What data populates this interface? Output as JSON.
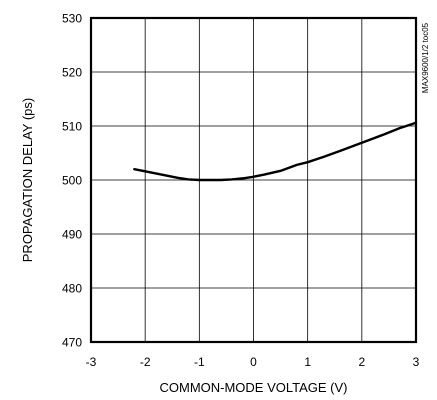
{
  "chart_data": {
    "type": "line",
    "title": "",
    "xlabel": "COMMON-MODE VOLTAGE (V)",
    "ylabel": "PROPAGATION DELAY (ps)",
    "side_label": "MAX9600/1/2 toc05",
    "xlim": [
      -3,
      3
    ],
    "ylim": [
      470,
      530
    ],
    "grid": true,
    "x_ticks": [
      -3,
      -2,
      -1,
      0,
      1,
      2,
      3
    ],
    "y_ticks": [
      470,
      480,
      490,
      500,
      510,
      520,
      530
    ],
    "x_tick_labels": [
      "-3",
      "-2",
      "-1",
      "0",
      "1",
      "2",
      "3"
    ],
    "y_tick_labels": [
      "470",
      "480",
      "490",
      "500",
      "510",
      "520",
      "530"
    ],
    "series": [
      {
        "color": "#000000",
        "x": [
          -2.2,
          -2.0,
          -1.7,
          -1.4,
          -1.2,
          -1.0,
          -0.8,
          -0.6,
          -0.4,
          -0.2,
          0.0,
          0.2,
          0.5,
          0.8,
          1.0,
          1.3,
          1.6,
          2.0,
          2.4,
          2.7,
          3.0
        ],
        "y": [
          502.0,
          501.6,
          501.0,
          500.4,
          500.1,
          500.0,
          500.0,
          500.0,
          500.1,
          500.3,
          500.6,
          501.0,
          501.7,
          502.8,
          503.3,
          504.3,
          505.4,
          506.9,
          508.4,
          509.6,
          510.6
        ]
      }
    ]
  }
}
